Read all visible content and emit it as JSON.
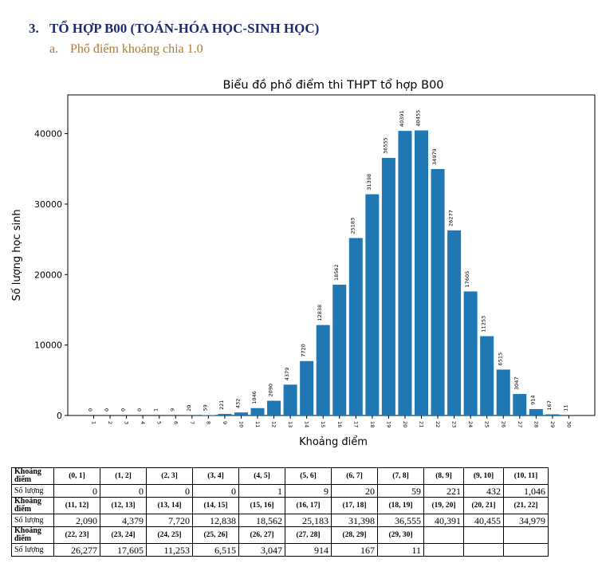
{
  "section": {
    "number": "3.",
    "title": "TỔ HỢP B00 (TOÁN-HÓA HỌC-SINH HỌC)"
  },
  "subsection": {
    "number": "a.",
    "title": "Phổ điểm khoảng chia 1.0"
  },
  "colors": {
    "bar": "#1f77b4",
    "heading": "#1f2a6b",
    "subheading": "#b07a2a"
  },
  "chart_data": {
    "type": "bar",
    "title": "Biểu đồ phổ điểm thi THPT tổ hợp B00",
    "xlabel": "Khoảng điểm",
    "ylabel": "Số lượng học sinh",
    "categories": [
      "1",
      "2",
      "3",
      "4",
      "5",
      "6",
      "7",
      "8",
      "9",
      "10",
      "11",
      "12",
      "13",
      "14",
      "15",
      "16",
      "17",
      "18",
      "19",
      "20",
      "21",
      "22",
      "23",
      "24",
      "25",
      "26",
      "27",
      "28",
      "29",
      "30"
    ],
    "values": [
      0,
      0,
      0,
      0,
      1,
      9,
      20,
      59,
      221,
      432,
      1046,
      2090,
      4379,
      7720,
      12838,
      18562,
      25183,
      31398,
      36555,
      40391,
      40455,
      34979,
      26277,
      17605,
      11253,
      6515,
      3047,
      914,
      167,
      11
    ],
    "yticks": [
      0,
      10000,
      20000,
      30000,
      40000
    ],
    "ylim": [
      0,
      45500
    ]
  },
  "table": {
    "header_label": "Khoảng điểm",
    "count_label": "Số lượng",
    "rows": [
      {
        "ranges": [
          "(0, 1]",
          "(1, 2]",
          "(2, 3]",
          "(3, 4]",
          "(4, 5]",
          "(5, 6]",
          "(6, 7]",
          "(7, 8]",
          "(8, 9]",
          "(9, 10]",
          "(10, 11]"
        ],
        "counts": [
          "0",
          "0",
          "0",
          "0",
          "1",
          "9",
          "20",
          "59",
          "221",
          "432",
          "1,046"
        ]
      },
      {
        "ranges": [
          "(11, 12]",
          "(12, 13]",
          "(13, 14]",
          "(14, 15]",
          "(15, 16]",
          "(16, 17]",
          "(17, 18]",
          "(18, 19]",
          "(19, 20]",
          "(20, 21]",
          "(21, 22]"
        ],
        "counts": [
          "2,090",
          "4,379",
          "7,720",
          "12,838",
          "18,562",
          "25,183",
          "31,398",
          "36,555",
          "40,391",
          "40,455",
          "34,979"
        ]
      },
      {
        "ranges": [
          "(22, 23]",
          "(23, 24]",
          "(24, 25]",
          "(25, 26]",
          "(26, 27]",
          "(27, 28]",
          "(28, 29]",
          "(29, 30]",
          "",
          "",
          ""
        ],
        "counts": [
          "26,277",
          "17,605",
          "11,253",
          "6,515",
          "3,047",
          "914",
          "167",
          "11",
          "",
          "",
          ""
        ]
      }
    ]
  }
}
